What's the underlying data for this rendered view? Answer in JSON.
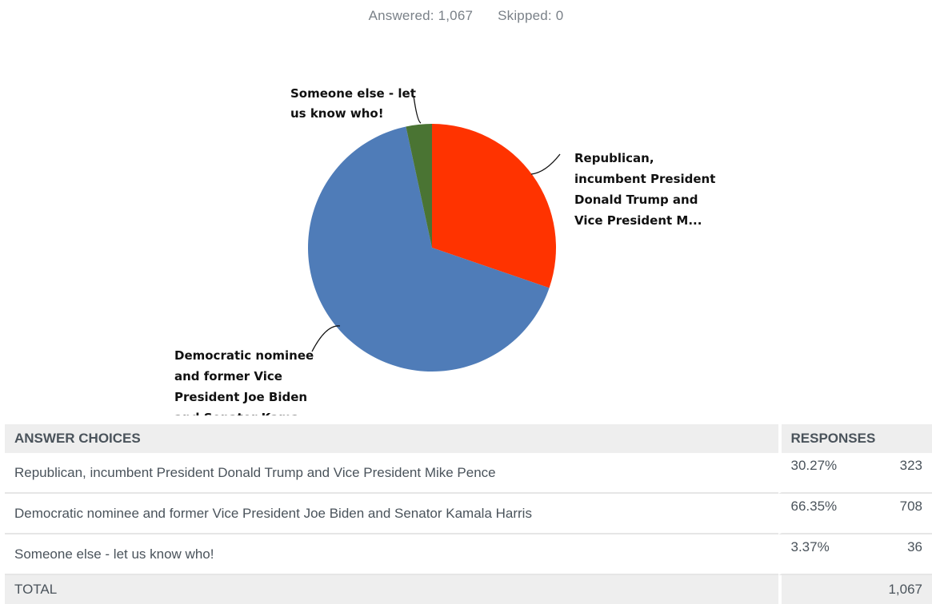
{
  "summary": {
    "answered": "Answered: 1,067",
    "skipped": "Skipped: 0"
  },
  "chart_data": {
    "type": "pie",
    "categories": [
      "Republican, incumbent President Donald Trump and Vice President Mike Pence",
      "Democratic nominee and former Vice President Joe Biden and Senator Kamala Harris",
      "Someone else - let us know who!"
    ],
    "values": [
      30.27,
      66.35,
      3.37
    ],
    "colors": [
      "#ff3300",
      "#4f7cb8",
      "#4a7433"
    ],
    "labels": [
      [
        "Republican,",
        "incumbent President",
        "Donald Trump and",
        "Vice President M..."
      ],
      [
        "Democratic nominee",
        "and former Vice",
        "President Joe Biden",
        "and Senator Kama..."
      ],
      [
        "Someone else - let",
        "us know who!"
      ]
    ]
  },
  "table": {
    "headers": {
      "choices": "ANSWER CHOICES",
      "responses": "RESPONSES"
    },
    "rows": [
      {
        "choice": "Republican, incumbent President Donald Trump and Vice President Mike Pence",
        "percent": "30.27%",
        "count": "323"
      },
      {
        "choice": "Democratic nominee and former Vice President Joe Biden and Senator Kamala Harris",
        "percent": "66.35%",
        "count": "708"
      },
      {
        "choice": "Someone else - let us know who!",
        "percent": "3.37%",
        "count": "36"
      }
    ],
    "total": {
      "label": "TOTAL",
      "count": "1,067"
    }
  }
}
